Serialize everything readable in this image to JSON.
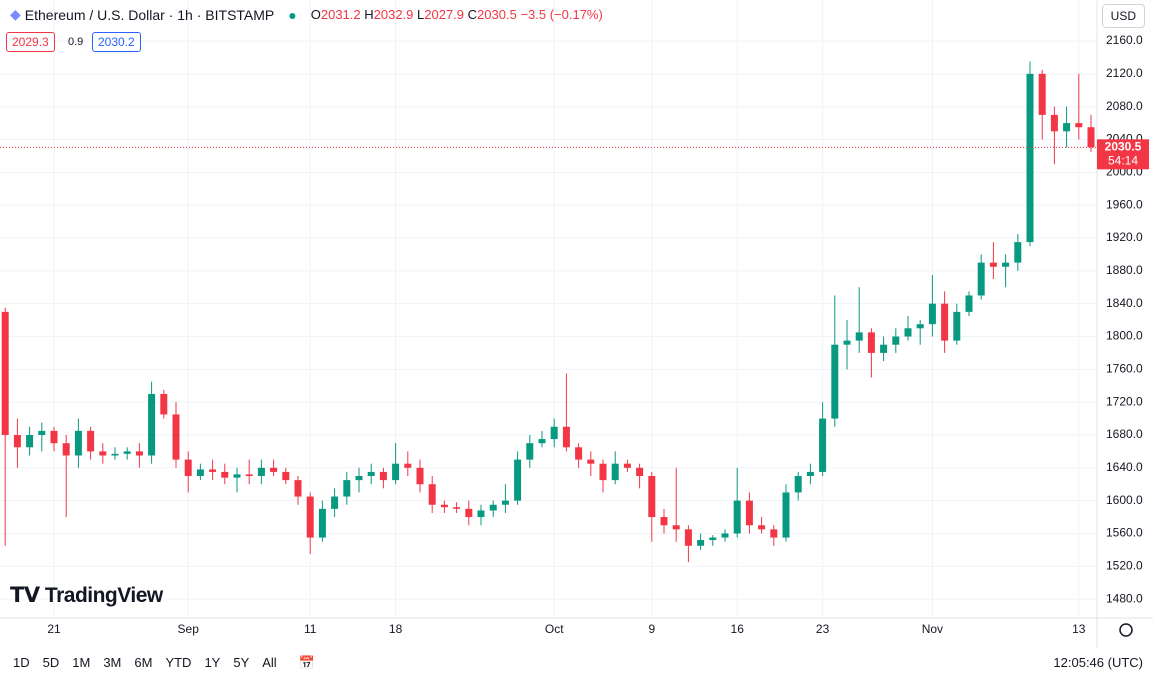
{
  "header": {
    "open_key": "O",
    "open": "2031.2",
    "high_key": "H",
    "high": "2032.9",
    "low_key": "L",
    "low": "2027.9",
    "close_key": "C",
    "close": "2030.5",
    "change": "−3.5 (−0.17%)",
    "sell": "2029.3",
    "spread": "0.9",
    "buy": "2030.2",
    "currency": "USD",
    "logo": "TradingView",
    "countdown": "54:14"
  },
  "toolbar": {
    "ranges": [
      "1D",
      "5D",
      "1M",
      "3M",
      "6M",
      "YTD",
      "1Y",
      "5Y",
      "All"
    ],
    "time": "12:05:46 (UTC)"
  },
  "chart_data": {
    "type": "candlestick",
    "title": "Ethereum / U.S. Dollar · 1h · BITSTAMP",
    "categories": [
      null,
      null,
      null,
      null,
      "21",
      null,
      null,
      null,
      null,
      null,
      null,
      null,
      null,
      null,
      null,
      "Sep",
      null,
      null,
      null,
      null,
      null,
      null,
      null,
      null,
      null,
      "11",
      null,
      null,
      null,
      null,
      null,
      null,
      "18",
      null,
      null,
      null,
      null,
      null,
      null,
      null,
      null,
      null,
      null,
      null,
      null,
      "Oct",
      null,
      null,
      null,
      null,
      null,
      null,
      null,
      "9",
      null,
      null,
      null,
      null,
      null,
      null,
      "16",
      null,
      null,
      null,
      null,
      null,
      null,
      "23",
      null,
      null,
      null,
      null,
      null,
      null,
      null,
      null,
      "Nov",
      null,
      null,
      null,
      null,
      null,
      null,
      null,
      null,
      null,
      null,
      null,
      "13",
      null
    ],
    "open": [
      1830,
      1680,
      1665,
      1680,
      1685,
      1670,
      1655,
      1685,
      1660,
      1655,
      1657,
      1660,
      1655,
      1730,
      1705,
      1650,
      1630,
      1638,
      1635,
      1628,
      1632,
      1630,
      1640,
      1635,
      1625,
      1605,
      1555,
      1590,
      1605,
      1625,
      1630,
      1635,
      1625,
      1645,
      1640,
      1620,
      1595,
      1592,
      1590,
      1580,
      1588,
      1595,
      1600,
      1650,
      1670,
      1675,
      1690,
      1665,
      1650,
      1645,
      1625,
      1645,
      1640,
      1630,
      1580,
      1570,
      1565,
      1545,
      1552,
      1555,
      1560,
      1600,
      1570,
      1565,
      1555,
      1610,
      1630,
      1635,
      1700,
      1790,
      1795,
      1805,
      1780,
      1790,
      1800,
      1810,
      1815,
      1840,
      1795,
      1830,
      1850,
      1890,
      1885,
      1890,
      1915,
      2120,
      2070,
      2050,
      2060,
      2055
    ],
    "high": [
      1835,
      1700,
      1690,
      1695,
      1690,
      1680,
      1700,
      1690,
      1670,
      1665,
      1665,
      1670,
      1745,
      1735,
      1720,
      1660,
      1645,
      1650,
      1645,
      1640,
      1650,
      1650,
      1650,
      1640,
      1630,
      1610,
      1600,
      1615,
      1635,
      1640,
      1645,
      1640,
      1670,
      1660,
      1650,
      1630,
      1600,
      1598,
      1600,
      1595,
      1600,
      1620,
      1660,
      1680,
      1685,
      1700,
      1755,
      1670,
      1660,
      1650,
      1660,
      1650,
      1645,
      1635,
      1590,
      1640,
      1570,
      1560,
      1558,
      1565,
      1640,
      1610,
      1580,
      1570,
      1620,
      1635,
      1645,
      1720,
      1850,
      1820,
      1860,
      1810,
      1800,
      1810,
      1825,
      1820,
      1875,
      1855,
      1840,
      1855,
      1900,
      1915,
      1900,
      1925,
      2135,
      2125,
      2080,
      2080,
      2120,
      2070
    ],
    "low": [
      1545,
      1640,
      1655,
      1660,
      1660,
      1580,
      1640,
      1650,
      1645,
      1650,
      1650,
      1640,
      1645,
      1700,
      1640,
      1610,
      1625,
      1625,
      1620,
      1610,
      1620,
      1620,
      1630,
      1620,
      1595,
      1535,
      1550,
      1580,
      1595,
      1610,
      1620,
      1615,
      1620,
      1630,
      1610,
      1585,
      1585,
      1585,
      1570,
      1570,
      1580,
      1585,
      1595,
      1640,
      1665,
      1665,
      1660,
      1640,
      1630,
      1610,
      1620,
      1635,
      1615,
      1550,
      1560,
      1550,
      1525,
      1540,
      1545,
      1550,
      1555,
      1560,
      1560,
      1545,
      1550,
      1600,
      1620,
      1630,
      1690,
      1760,
      1780,
      1750,
      1770,
      1780,
      1795,
      1790,
      1800,
      1780,
      1790,
      1825,
      1845,
      1870,
      1860,
      1880,
      1910,
      2040,
      2010,
      2030,
      2040,
      2025
    ],
    "close": [
      1680,
      1665,
      1680,
      1685,
      1670,
      1655,
      1685,
      1660,
      1655,
      1657,
      1660,
      1655,
      1730,
      1705,
      1650,
      1630,
      1638,
      1635,
      1628,
      1632,
      1630,
      1640,
      1635,
      1625,
      1605,
      1555,
      1590,
      1605,
      1625,
      1630,
      1635,
      1625,
      1645,
      1640,
      1620,
      1595,
      1592,
      1590,
      1580,
      1588,
      1595,
      1600,
      1650,
      1670,
      1675,
      1690,
      1665,
      1650,
      1645,
      1625,
      1645,
      1640,
      1630,
      1580,
      1570,
      1565,
      1545,
      1552,
      1555,
      1560,
      1600,
      1570,
      1565,
      1555,
      1610,
      1630,
      1635,
      1700,
      1790,
      1795,
      1805,
      1780,
      1790,
      1800,
      1810,
      1815,
      1840,
      1795,
      1830,
      1850,
      1890,
      1885,
      1890,
      1915,
      2120,
      2070,
      2050,
      2060,
      2055,
      2030.5
    ],
    "up_color": "#089981",
    "down_color": "#f23645",
    "ylim": [
      1457,
      2210
    ],
    "yticks": [
      {
        "value": 1480,
        "label": "1480.0"
      },
      {
        "value": 1520,
        "label": "1520.0"
      },
      {
        "value": 1560,
        "label": "1560.0"
      },
      {
        "value": 1600,
        "label": "1600.0"
      },
      {
        "value": 1640,
        "label": "1640.0"
      },
      {
        "value": 1680,
        "label": "1680.0"
      },
      {
        "value": 1720,
        "label": "1720.0"
      },
      {
        "value": 1760,
        "label": "1760.0"
      },
      {
        "value": 1800,
        "label": "1800.0"
      },
      {
        "value": 1840,
        "label": "1840.0"
      },
      {
        "value": 1880,
        "label": "1880.0"
      },
      {
        "value": 1920,
        "label": "1920.0"
      },
      {
        "value": 1960,
        "label": "1960.0"
      },
      {
        "value": 2000,
        "label": "2000.0"
      },
      {
        "value": 2040,
        "label": "2040.0"
      },
      {
        "value": 2080,
        "label": "2080.0"
      },
      {
        "value": 2120,
        "label": "2120.0"
      },
      {
        "value": 2160,
        "label": "2160.0"
      }
    ],
    "grid": true
  }
}
